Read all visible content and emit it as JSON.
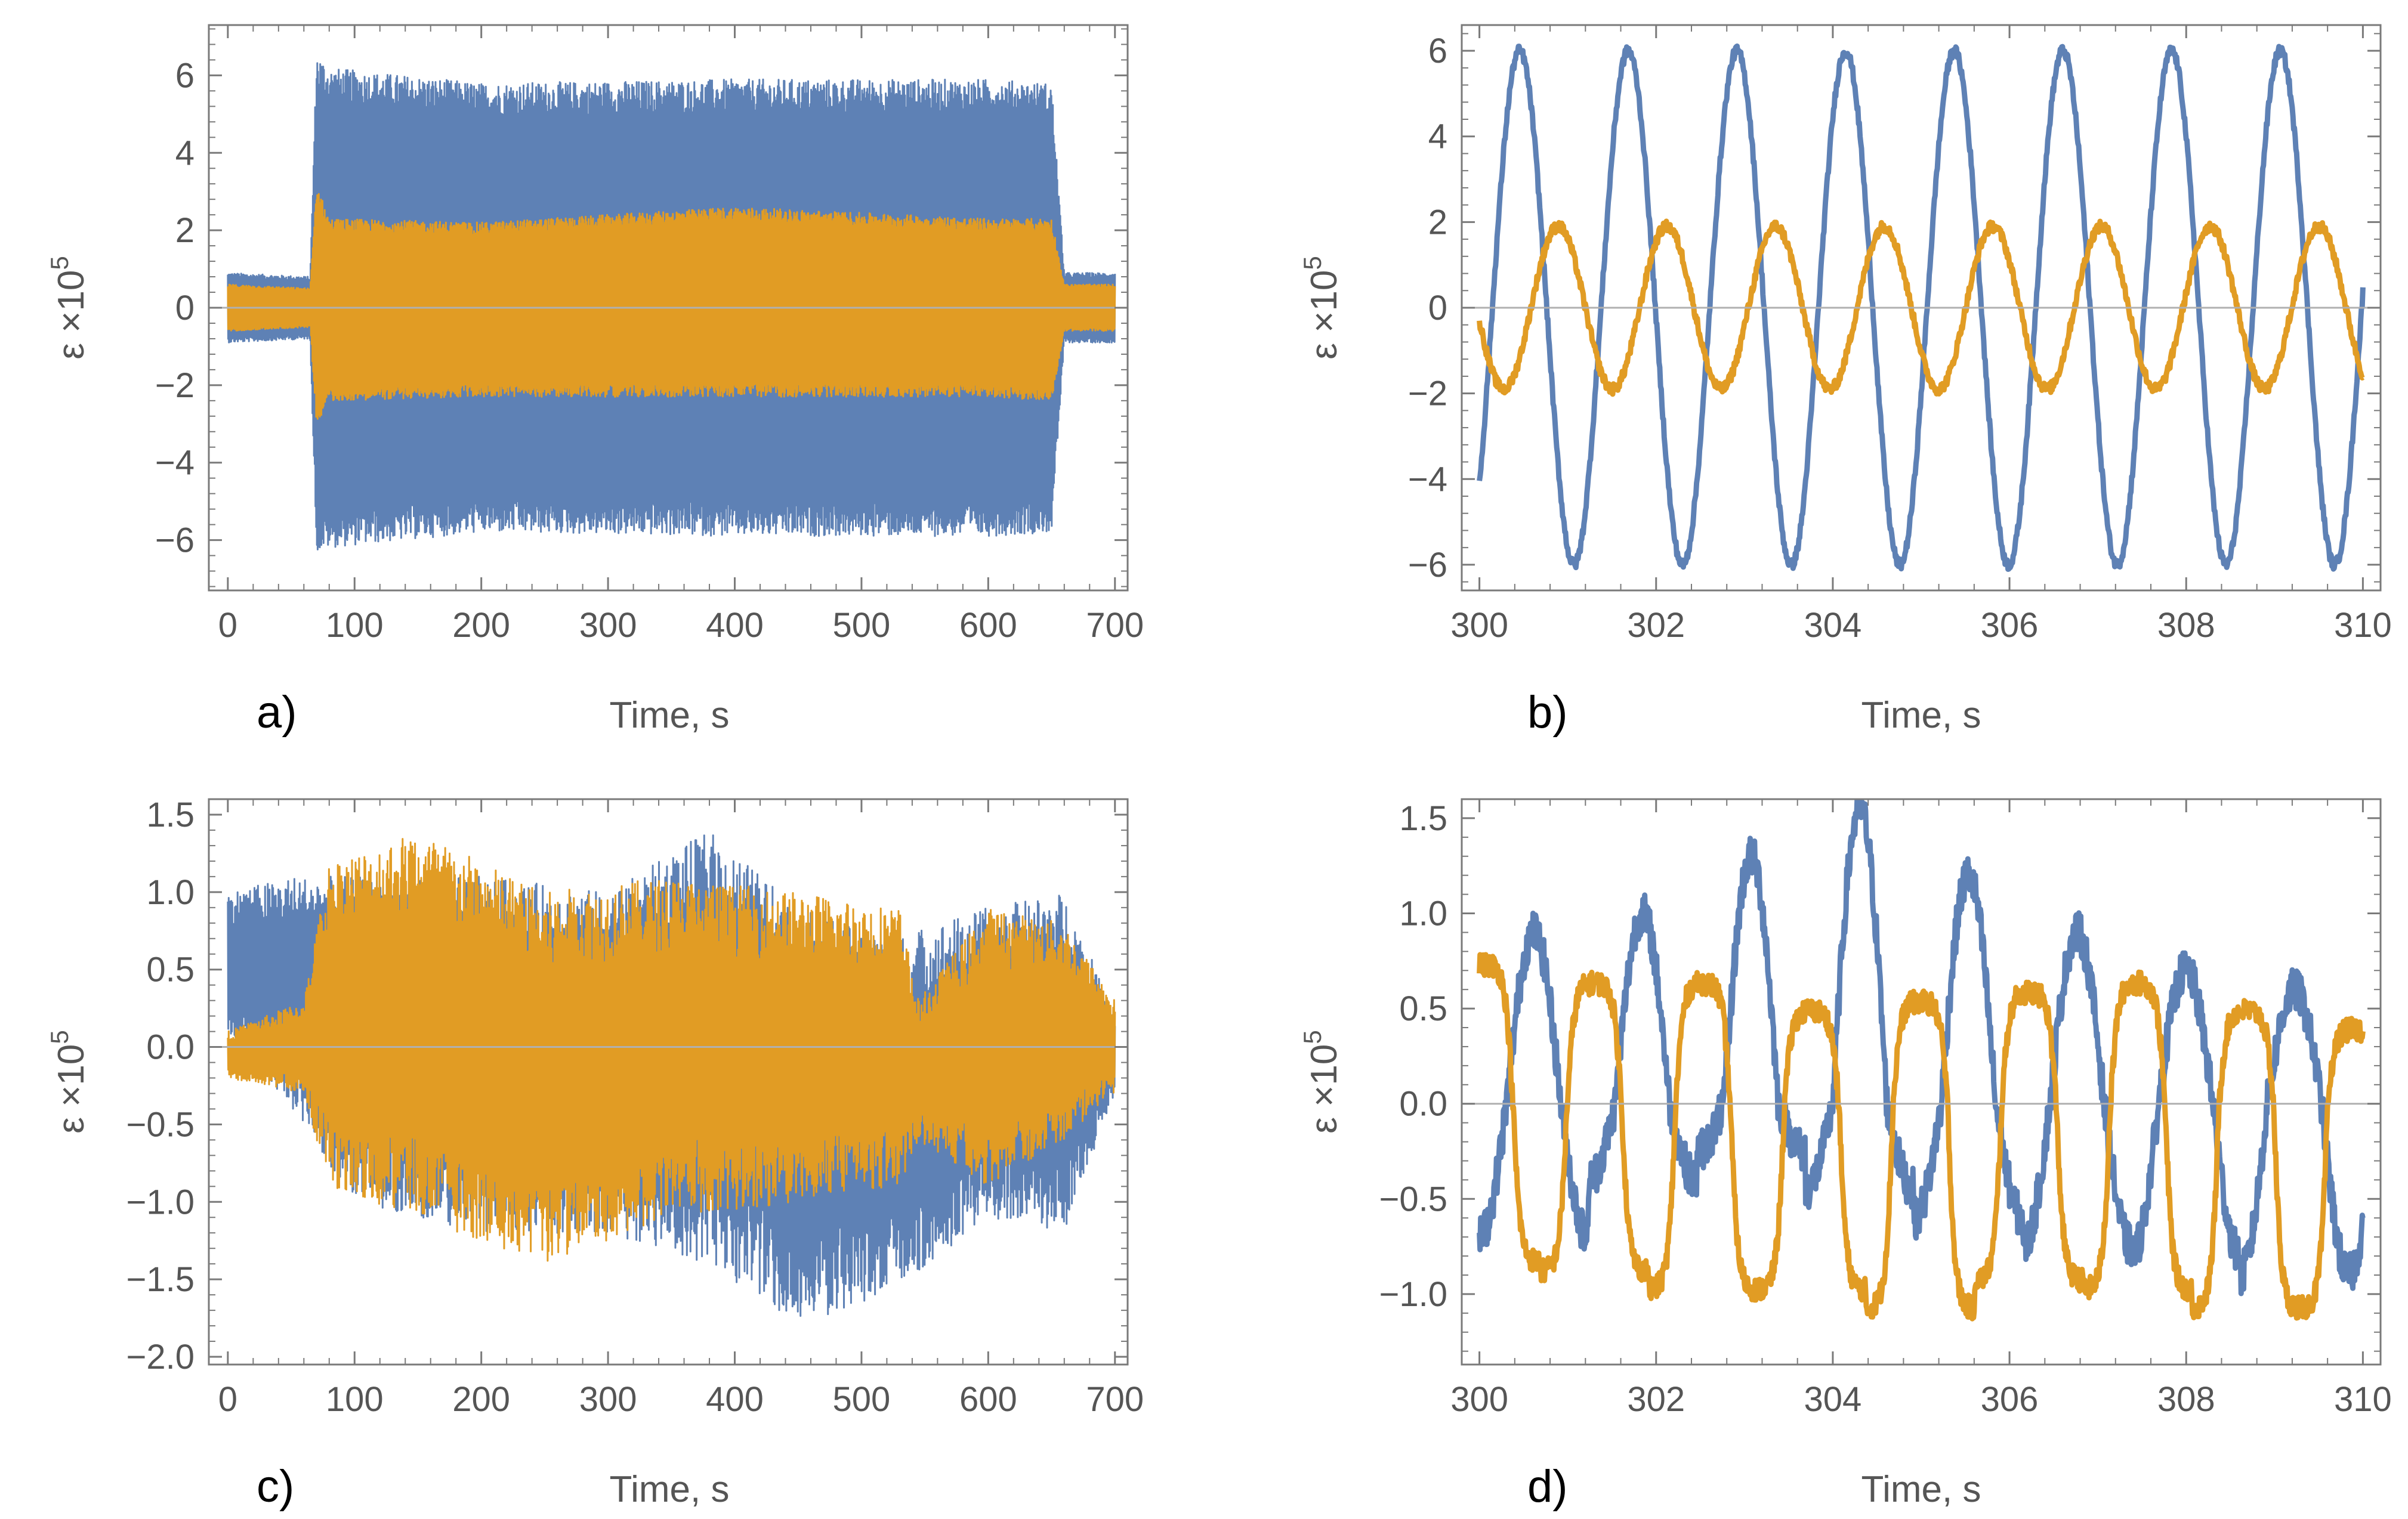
{
  "colors": {
    "series1": "#5e81b5",
    "series2": "#e19c24"
  },
  "chart_data": [
    {
      "panel": "a)",
      "type": "line",
      "style": "dense-band",
      "xlabel": "Time, s",
      "ylabel": "ε ×10",
      "ylabel_exp": "5",
      "xlim": [
        -15,
        710
      ],
      "ylim": [
        -7.3,
        7.3
      ],
      "xticks": [
        0,
        100,
        200,
        300,
        400,
        500,
        600,
        700
      ],
      "xtick_labels": [
        "0",
        "100",
        "200",
        "300",
        "400",
        "500",
        "600",
        "700"
      ],
      "yticks": [
        -6,
        -4,
        -2,
        0,
        2,
        4,
        6
      ],
      "ytick_labels": [
        "−6",
        "−4",
        "−2",
        "0",
        "2",
        "4",
        "6"
      ],
      "series": [
        {
          "name": "series 1 (blue)",
          "color": "#5e81b5",
          "envelope": {
            "t": [
              0,
              65,
              70,
              80,
              200,
              400,
              600,
              650,
              660,
              700
            ],
            "upper": [
              0.9,
              0.8,
              6.6,
              6.2,
              5.8,
              5.9,
              5.9,
              5.8,
              0.9,
              0.9
            ],
            "lower": [
              -0.9,
              -0.8,
              -6.3,
              -6.2,
              -5.8,
              -5.9,
              -5.9,
              -5.8,
              -0.9,
              -0.9
            ]
          }
        },
        {
          "name": "series 2 (orange)",
          "color": "#e19c24",
          "envelope": {
            "t": [
              0,
              65,
              70,
              80,
              200,
              400,
              600,
              650,
              660,
              700
            ],
            "upper": [
              0.6,
              0.5,
              3.2,
              2.3,
              2.2,
              2.6,
              2.3,
              2.3,
              0.6,
              0.6
            ],
            "lower": [
              -0.6,
              -0.5,
              -3.0,
              -2.4,
              -2.3,
              -2.3,
              -2.3,
              -2.4,
              -0.6,
              -0.6
            ]
          }
        }
      ]
    },
    {
      "panel": "b)",
      "type": "line",
      "style": "sine",
      "xlabel": "Time, s",
      "ylabel": "ε ×10",
      "ylabel_exp": "5",
      "xlim": [
        299.8,
        310.2
      ],
      "ylim": [
        -6.6,
        6.6
      ],
      "xticks": [
        300,
        302,
        304,
        306,
        308,
        310
      ],
      "xtick_labels": [
        "300",
        "302",
        "304",
        "306",
        "308",
        "310"
      ],
      "yticks": [
        -6,
        -4,
        -2,
        0,
        2,
        4,
        6
      ],
      "ytick_labels": [
        "−6",
        "−4",
        "−2",
        "0",
        "2",
        "4",
        "6"
      ],
      "series": [
        {
          "name": "series 1 (blue)",
          "color": "#5e81b5",
          "amplitude": 6.0,
          "period": 1.23,
          "start": 300,
          "end": 310,
          "start_value": -4.1,
          "rising_at_start": true
        },
        {
          "name": "series 2 (orange)",
          "color": "#e19c24",
          "amplitude": 1.9,
          "period": 1.23,
          "start": 300,
          "end": 310,
          "start_value": -0.3,
          "rising_at_start": false
        }
      ]
    },
    {
      "panel": "c)",
      "type": "line",
      "style": "noisy-band",
      "xlabel": "Time, s",
      "ylabel": "ε ×10",
      "ylabel_exp": "5",
      "xlim": [
        -15,
        710
      ],
      "ylim": [
        -2.05,
        1.6
      ],
      "xticks": [
        0,
        100,
        200,
        300,
        400,
        500,
        600,
        700
      ],
      "xtick_labels": [
        "0",
        "100",
        "200",
        "300",
        "400",
        "500",
        "600",
        "700"
      ],
      "yticks": [
        -2.0,
        -1.5,
        -1.0,
        -0.5,
        0.0,
        0.5,
        1.0,
        1.5
      ],
      "ytick_labels": [
        "−2.0",
        "−1.5",
        "−1.0",
        "−0.5",
        "0.0",
        "0.5",
        "1.0",
        "1.5"
      ],
      "series": [
        {
          "name": "series 1 (blue)",
          "color": "#5e81b5",
          "envelope": {
            "t": [
              0,
              50,
              100,
              200,
              300,
              380,
              450,
              520,
              600,
              660,
              700
            ],
            "upper": [
              1.0,
              1.1,
              1.1,
              1.1,
              1.0,
              1.4,
              0.9,
              0.7,
              0.9,
              1.0,
              0.2
            ],
            "lower": [
              0.1,
              -0.4,
              -1.0,
              -1.2,
              -1.2,
              -1.4,
              -1.8,
              -1.6,
              -1.1,
              -1.2,
              -0.3
            ]
          }
        },
        {
          "name": "series 2 (orange)",
          "color": "#e19c24",
          "envelope": {
            "t": [
              0,
              60,
              80,
              150,
              250,
              350,
              450,
              530,
              545,
              600,
              660,
              700
            ],
            "upper": [
              0.1,
              0.3,
              1.2,
              1.4,
              1.0,
              1.1,
              1.0,
              0.9,
              0.3,
              0.9,
              0.8,
              0.3
            ],
            "lower": [
              -0.2,
              -0.3,
              -0.9,
              -1.1,
              -1.4,
              -1.1,
              -1.0,
              -0.9,
              -0.6,
              -0.9,
              -0.6,
              -0.3
            ]
          }
        }
      ]
    },
    {
      "panel": "d)",
      "type": "line",
      "style": "noisy-oscillation",
      "xlabel": "Time, s",
      "ylabel": "ε ×10",
      "ylabel_exp": "5",
      "xlim": [
        299.8,
        310.2
      ],
      "ylim": [
        -1.37,
        1.6
      ],
      "xticks": [
        300,
        302,
        304,
        306,
        308,
        310
      ],
      "xtick_labels": [
        "300",
        "302",
        "304",
        "306",
        "308",
        "310"
      ],
      "yticks": [
        -1.0,
        -0.5,
        0.0,
        0.5,
        1.0,
        1.5
      ],
      "ytick_labels": [
        "−1.0",
        "−0.5",
        "0.0",
        "0.5",
        "1.0",
        "1.5"
      ],
      "series": [
        {
          "name": "series 1 (blue)",
          "color": "#5e81b5",
          "mean": 0.05,
          "amplitude": 0.8,
          "period": 1.23,
          "start": 300,
          "end": 310,
          "peaks": [
            0.9,
            1.0,
            1.3,
            1.55,
            1.2,
            0.9,
            0.7,
            0.6,
            0.1
          ],
          "troughs": [
            -0.7,
            -0.4,
            -0.25,
            -0.45,
            -0.6,
            -0.75,
            -0.8,
            -0.9
          ]
        },
        {
          "name": "series 2 (orange)",
          "color": "#e19c24",
          "amplitude": 0.85,
          "mean": -0.2,
          "period": 1.23,
          "start": 300,
          "end": 310,
          "peaks": [
            0.75,
            0.65,
            0.65,
            0.5,
            0.55,
            0.6,
            0.65,
            0.5,
            0.4
          ],
          "troughs": [
            -0.85,
            -0.9,
            -1.0,
            -1.0,
            -1.1,
            -0.95,
            -1.0,
            -1.1
          ]
        }
      ]
    }
  ]
}
